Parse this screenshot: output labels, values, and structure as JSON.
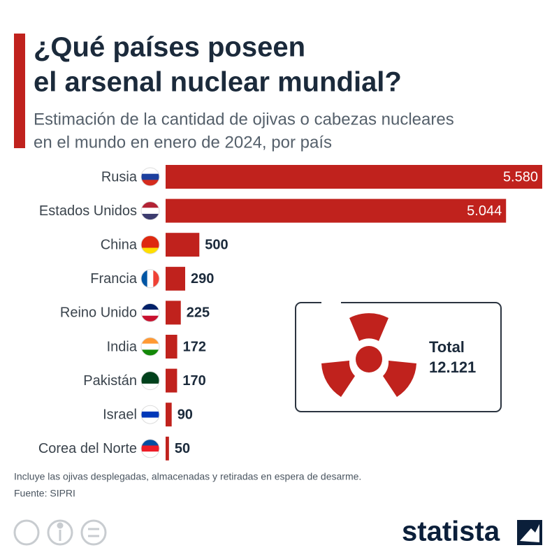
{
  "chart_data": {
    "type": "bar",
    "title": [
      "¿Qué países poseen",
      "el arsenal nuclear mundial?"
    ],
    "subtitle": [
      "Estimación de la cantidad de ojivas o cabezas nucleares",
      "en el mundo en enero de 2024, por país"
    ],
    "categories": [
      "Rusia",
      "Estados Unidos",
      "China",
      "Francia",
      "Reino Unido",
      "India",
      "Pakistán",
      "Israel",
      "Corea del Norte"
    ],
    "values": [
      5580,
      5044,
      500,
      290,
      225,
      172,
      170,
      90,
      50
    ],
    "value_labels": [
      "5.580",
      "5.044",
      "500",
      "290",
      "225",
      "172",
      "170",
      "90",
      "50"
    ],
    "color": "#c0221d",
    "annotations": [
      "Total",
      "12.121"
    ],
    "notes": [
      "Incluye las ojivas desplegadas, almacenadas y retiradas en espera de desarme.",
      "Fuente: SIPRI"
    ],
    "brand": "statista"
  }
}
